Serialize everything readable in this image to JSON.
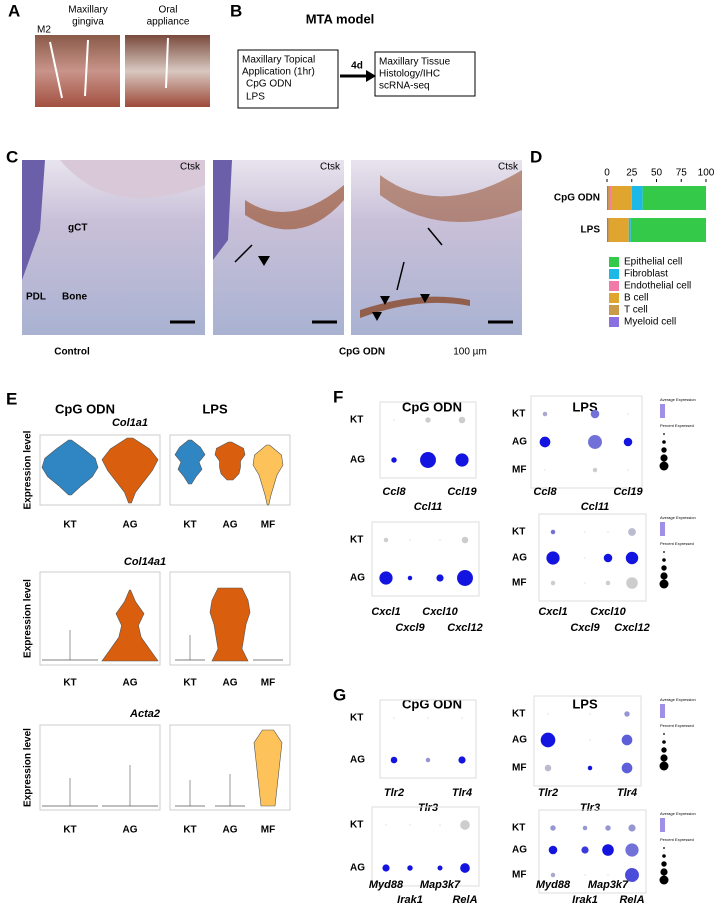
{
  "panel_labels": [
    "A",
    "B",
    "C",
    "D",
    "E",
    "F",
    "G"
  ],
  "a": {
    "texts": [
      "M2",
      "Maxillary",
      "gingiva",
      "Oral",
      "appliance"
    ]
  },
  "b": {
    "title": "MTA model",
    "box1": [
      "Maxillary Topical",
      "Application (1hr)",
      "CpG ODN",
      "LPS"
    ],
    "arrow": "4d",
    "box2": [
      "Maxillary Tissue",
      "Histology/IHC",
      "scRNA-seq"
    ]
  },
  "c": {
    "stain": "Ctsk",
    "labels": [
      "gCT",
      "PDL",
      "Bone"
    ],
    "captions": [
      "Control",
      "CpG ODN"
    ],
    "scale": "100 µm"
  },
  "d": {
    "chart_data": {
      "type": "bar",
      "orientation": "horizontal",
      "stacked": true,
      "categories": [
        "CpG ODN",
        "LPS"
      ],
      "series": [
        {
          "name": "Myeloid cell",
          "color": "#8a6fe0",
          "values": [
            1,
            1
          ]
        },
        {
          "name": "T cell",
          "color": "#c99a4a",
          "values": [
            2,
            1
          ]
        },
        {
          "name": "Endothelial cell",
          "color": "#f07aa8",
          "values": [
            1,
            1
          ]
        },
        {
          "name": "B cell",
          "color": "#e0a52e",
          "values": [
            21,
            19
          ]
        },
        {
          "name": "Fibroblast",
          "color": "#1cb8e8",
          "values": [
            11,
            2
          ]
        },
        {
          "name": "Epithelial cell",
          "color": "#34c948",
          "values": [
            64,
            76
          ]
        }
      ],
      "legend_order": [
        "Epithelial cell",
        "Fibroblast",
        "Endothelial cell",
        "B cell",
        "T cell",
        "Myeloid cell"
      ],
      "xlim": [
        0,
        100
      ],
      "xticks": [
        0,
        25,
        50,
        75,
        100
      ]
    }
  },
  "e": {
    "groups": [
      "CpG ODN",
      "LPS"
    ],
    "genes": [
      "Col1a1",
      "Col14a1",
      "Acta2"
    ],
    "ylabel": "Expression level",
    "x_cpg": [
      "KT",
      "AG"
    ],
    "x_lps": [
      "KT",
      "AG",
      "MF"
    ]
  },
  "f": {
    "groups": [
      "CpG ODN",
      "LPS"
    ]
  },
  "g": {
    "groups": [
      "CpG ODN",
      "LPS"
    ]
  },
  "legend_titles": [
    "Average Expression",
    "Percent Expressed"
  ],
  "dotplots": [
    {
      "rows": [
        "KT",
        "AG"
      ],
      "genes": [
        "Ccl8",
        "Ccl11",
        "Ccl19"
      ],
      "pct": [
        [
          0,
          5,
          8
        ],
        [
          5,
          60,
          40
        ]
      ],
      "avg": [
        [
          0,
          0,
          0
        ],
        [
          1,
          1,
          1
        ]
      ]
    },
    {
      "rows": [
        "KT",
        "AG",
        "MF"
      ],
      "genes": [
        "Ccl8",
        "Ccl11",
        "Ccl19"
      ],
      "pct": [
        [
          3,
          15,
          0
        ],
        [
          25,
          45,
          15
        ],
        [
          0,
          3,
          0
        ]
      ],
      "avg": [
        [
          0.2,
          0.5,
          0
        ],
        [
          1,
          0.5,
          1
        ],
        [
          0,
          0,
          0
        ]
      ]
    },
    {
      "rows": [
        "KT",
        "AG"
      ],
      "genes": [
        "Cxcl1",
        "Cxcl9",
        "Cxcl10",
        "Cxcl12"
      ],
      "pct": [
        [
          3,
          0,
          0,
          8
        ],
        [
          40,
          3,
          10,
          60
        ]
      ],
      "avg": [
        [
          0,
          0,
          0,
          0
        ],
        [
          1,
          1,
          1,
          1
        ]
      ]
    },
    {
      "rows": [
        "KT",
        "AG",
        "MF"
      ],
      "genes": [
        "Cxcl1",
        "Cxcl9",
        "Cxcl10",
        "Cxcl12"
      ],
      "pct": [
        [
          3,
          0,
          0,
          12
        ],
        [
          40,
          0,
          15,
          35
        ],
        [
          3,
          0,
          3,
          30
        ]
      ],
      "avg": [
        [
          0.5,
          0,
          0,
          0.1
        ],
        [
          1,
          0,
          1,
          1
        ],
        [
          0,
          0,
          0,
          0
        ]
      ]
    },
    {
      "rows": [
        "KT",
        "AG"
      ],
      "genes": [
        "Tlr2",
        "Tlr3",
        "Tlr4"
      ],
      "pct": [
        [
          0,
          0,
          0
        ],
        [
          8,
          3,
          10
        ]
      ],
      "avg": [
        [
          0,
          0,
          0
        ],
        [
          1,
          0.3,
          1
        ]
      ]
    },
    {
      "rows": [
        "KT",
        "AG",
        "MF"
      ],
      "genes": [
        "Tlr2",
        "Tlr3",
        "Tlr4"
      ],
      "pct": [
        [
          0,
          0,
          5
        ],
        [
          50,
          0,
          25
        ],
        [
          8,
          3,
          25
        ]
      ],
      "avg": [
        [
          0,
          0,
          0.3
        ],
        [
          1,
          0,
          0.6
        ],
        [
          0.1,
          1,
          0.6
        ]
      ]
    },
    {
      "rows": [
        "KT",
        "AG"
      ],
      "genes": [
        "Myd88",
        "Irak1",
        "Map3k7",
        "RelA"
      ],
      "pct": [
        [
          0,
          0,
          0,
          20
        ],
        [
          10,
          5,
          4,
          20
        ]
      ],
      "avg": [
        [
          0,
          0,
          0,
          0
        ],
        [
          1,
          1,
          1,
          1
        ]
      ]
    },
    {
      "rows": [
        "KT",
        "AG",
        "MF"
      ],
      "genes": [
        "Myd88",
        "Irak1",
        "Map3k7",
        "RelA"
      ],
      "pct": [
        [
          5,
          3,
          5,
          10
        ],
        [
          15,
          10,
          30,
          40
        ],
        [
          3,
          0,
          0,
          45
        ]
      ],
      "avg": [
        [
          0.3,
          0.3,
          0.3,
          0.3
        ],
        [
          1,
          0.8,
          1,
          0.5
        ],
        [
          0.2,
          0,
          0,
          0.7
        ]
      ]
    }
  ]
}
